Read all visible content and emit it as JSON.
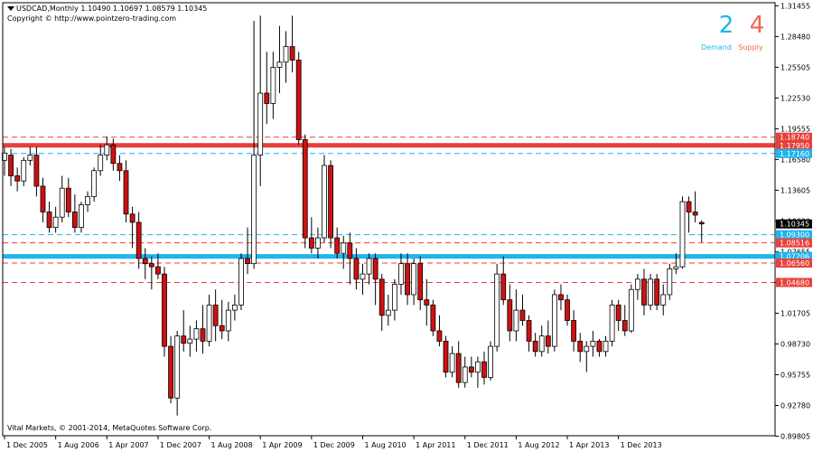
{
  "header": {
    "symbol_line": "USDCAD,Monthly  1.10490 1.10697 1.08579 1.10345",
    "copyright": "Copyright © http://www.pointzero-trading.com"
  },
  "footer": {
    "text": "Vital Markets, © 2001-2014, MetaQuotes Software Corp."
  },
  "counters": {
    "demand_value": "2",
    "demand_label": "Demand",
    "supply_value": "4",
    "supply_label": "Supply",
    "demand_color": "#1eb4f0",
    "supply_color": "#f0654f"
  },
  "colors": {
    "bull_body": "#ffffff",
    "bear_body": "#d01010",
    "candle_outline": "#000000",
    "supply_line": "#e8403a",
    "demand_line": "#1eb4f0",
    "current_price_bg": "#000000"
  },
  "chart_data": {
    "type": "candlestick",
    "title": "USDCAD,Monthly",
    "ylim": [
      0.8985,
      1.3175
    ],
    "y_ticks": [
      "1.31455",
      "1.28480",
      "1.25505",
      "1.22530",
      "1.19555",
      "1.16580",
      "1.13605",
      "1.10630",
      "1.07655",
      "1.04680",
      "1.01705",
      "0.98730",
      "0.95755",
      "0.92780",
      "0.89805"
    ],
    "x_ticks": [
      "1 Dec 2005",
      "1 Aug 2006",
      "1 Apr 2007",
      "1 Dec 2007",
      "1 Aug 2008",
      "1 Apr 2009",
      "1 Dec 2009",
      "1 Aug 2010",
      "1 Apr 2011",
      "1 Dec 2011",
      "1 Aug 2012",
      "1 Apr 2013",
      "1 Dec 2013"
    ],
    "current_price": "1.10345",
    "levels": [
      {
        "value": 1.1874,
        "label": "1.18740",
        "kind": "supply",
        "style": "dashed"
      },
      {
        "value": 1.1795,
        "label": "1.17950",
        "kind": "supply",
        "style": "solid-thick"
      },
      {
        "value": 1.1716,
        "label": "1.17160",
        "kind": "demand",
        "style": "dashed"
      },
      {
        "value": 1.093,
        "label": "1.09300",
        "kind": "demand",
        "style": "dashed"
      },
      {
        "value": 1.0851,
        "label": "1.08516",
        "kind": "supply",
        "style": "dashed"
      },
      {
        "value": 1.072,
        "label": "1.07206",
        "kind": "demand",
        "style": "solid-thick"
      },
      {
        "value": 1.0656,
        "label": "1.06560",
        "kind": "supply",
        "style": "dashed"
      },
      {
        "value": 1.0468,
        "label": "1.04680",
        "kind": "supply",
        "style": "dashed"
      }
    ],
    "candles": [
      {
        "o": 1.165,
        "h": 1.178,
        "l": 1.15,
        "c": 1.172
      },
      {
        "o": 1.17,
        "h": 1.176,
        "l": 1.14,
        "c": 1.15
      },
      {
        "o": 1.15,
        "h": 1.158,
        "l": 1.135,
        "c": 1.145
      },
      {
        "o": 1.145,
        "h": 1.168,
        "l": 1.14,
        "c": 1.165
      },
      {
        "o": 1.165,
        "h": 1.178,
        "l": 1.16,
        "c": 1.17
      },
      {
        "o": 1.17,
        "h": 1.178,
        "l": 1.13,
        "c": 1.14
      },
      {
        "o": 1.14,
        "h": 1.148,
        "l": 1.105,
        "c": 1.115
      },
      {
        "o": 1.115,
        "h": 1.125,
        "l": 1.095,
        "c": 1.1
      },
      {
        "o": 1.1,
        "h": 1.12,
        "l": 1.095,
        "c": 1.11
      },
      {
        "o": 1.11,
        "h": 1.15,
        "l": 1.105,
        "c": 1.138
      },
      {
        "o": 1.138,
        "h": 1.148,
        "l": 1.11,
        "c": 1.115
      },
      {
        "o": 1.115,
        "h": 1.132,
        "l": 1.095,
        "c": 1.1
      },
      {
        "o": 1.1,
        "h": 1.125,
        "l": 1.095,
        "c": 1.122
      },
      {
        "o": 1.122,
        "h": 1.135,
        "l": 1.115,
        "c": 1.13
      },
      {
        "o": 1.13,
        "h": 1.158,
        "l": 1.125,
        "c": 1.155
      },
      {
        "o": 1.155,
        "h": 1.18,
        "l": 1.15,
        "c": 1.17
      },
      {
        "o": 1.17,
        "h": 1.188,
        "l": 1.165,
        "c": 1.18
      },
      {
        "o": 1.18,
        "h": 1.186,
        "l": 1.155,
        "c": 1.162
      },
      {
        "o": 1.162,
        "h": 1.17,
        "l": 1.145,
        "c": 1.155
      },
      {
        "o": 1.155,
        "h": 1.165,
        "l": 1.105,
        "c": 1.113
      },
      {
        "o": 1.113,
        "h": 1.12,
        "l": 1.08,
        "c": 1.105
      },
      {
        "o": 1.105,
        "h": 1.115,
        "l": 1.06,
        "c": 1.07
      },
      {
        "o": 1.07,
        "h": 1.08,
        "l": 1.05,
        "c": 1.065
      },
      {
        "o": 1.065,
        "h": 1.072,
        "l": 1.04,
        "c": 1.062
      },
      {
        "o": 1.062,
        "h": 1.075,
        "l": 1.05,
        "c": 1.055
      },
      {
        "o": 1.055,
        "h": 1.062,
        "l": 0.975,
        "c": 0.985
      },
      {
        "o": 0.985,
        "h": 0.995,
        "l": 0.93,
        "c": 0.935
      },
      {
        "o": 0.935,
        "h": 1.0,
        "l": 0.918,
        "c": 0.995
      },
      {
        "o": 0.995,
        "h": 1.02,
        "l": 0.98,
        "c": 0.988
      },
      {
        "o": 0.988,
        "h": 1.005,
        "l": 0.975,
        "c": 0.992
      },
      {
        "o": 0.992,
        "h": 1.01,
        "l": 0.98,
        "c": 1.002
      },
      {
        "o": 1.002,
        "h": 1.025,
        "l": 0.978,
        "c": 0.99
      },
      {
        "o": 0.99,
        "h": 1.035,
        "l": 0.985,
        "c": 1.025
      },
      {
        "o": 1.025,
        "h": 1.04,
        "l": 0.99,
        "c": 1.005
      },
      {
        "o": 1.005,
        "h": 1.03,
        "l": 0.992,
        "c": 1.0
      },
      {
        "o": 1.0,
        "h": 1.028,
        "l": 0.99,
        "c": 1.02
      },
      {
        "o": 1.02,
        "h": 1.035,
        "l": 1.01,
        "c": 1.025
      },
      {
        "o": 1.025,
        "h": 1.075,
        "l": 1.02,
        "c": 1.07
      },
      {
        "o": 1.07,
        "h": 1.1,
        "l": 1.055,
        "c": 1.065
      },
      {
        "o": 1.065,
        "h": 1.3,
        "l": 1.06,
        "c": 1.17
      },
      {
        "o": 1.17,
        "h": 1.305,
        "l": 1.14,
        "c": 1.23
      },
      {
        "o": 1.23,
        "h": 1.27,
        "l": 1.2,
        "c": 1.22
      },
      {
        "o": 1.22,
        "h": 1.27,
        "l": 1.205,
        "c": 1.255
      },
      {
        "o": 1.255,
        "h": 1.295,
        "l": 1.23,
        "c": 1.26
      },
      {
        "o": 1.26,
        "h": 1.29,
        "l": 1.24,
        "c": 1.275
      },
      {
        "o": 1.275,
        "h": 1.305,
        "l": 1.25,
        "c": 1.262
      },
      {
        "o": 1.262,
        "h": 1.27,
        "l": 1.18,
        "c": 1.185
      },
      {
        "o": 1.185,
        "h": 1.19,
        "l": 1.08,
        "c": 1.09
      },
      {
        "o": 1.09,
        "h": 1.11,
        "l": 1.075,
        "c": 1.08
      },
      {
        "o": 1.08,
        "h": 1.1,
        "l": 1.07,
        "c": 1.09
      },
      {
        "o": 1.09,
        "h": 1.17,
        "l": 1.085,
        "c": 1.16
      },
      {
        "o": 1.16,
        "h": 1.165,
        "l": 1.08,
        "c": 1.09
      },
      {
        "o": 1.09,
        "h": 1.1,
        "l": 1.07,
        "c": 1.075
      },
      {
        "o": 1.075,
        "h": 1.092,
        "l": 1.06,
        "c": 1.085
      },
      {
        "o": 1.085,
        "h": 1.095,
        "l": 1.045,
        "c": 1.07
      },
      {
        "o": 1.07,
        "h": 1.08,
        "l": 1.04,
        "c": 1.05
      },
      {
        "o": 1.05,
        "h": 1.065,
        "l": 1.035,
        "c": 1.055
      },
      {
        "o": 1.055,
        "h": 1.075,
        "l": 1.045,
        "c": 1.07
      },
      {
        "o": 1.07,
        "h": 1.075,
        "l": 1.025,
        "c": 1.05
      },
      {
        "o": 1.05,
        "h": 1.055,
        "l": 1.0,
        "c": 1.015
      },
      {
        "o": 1.015,
        "h": 1.035,
        "l": 1.005,
        "c": 1.02
      },
      {
        "o": 1.02,
        "h": 1.05,
        "l": 1.01,
        "c": 1.045
      },
      {
        "o": 1.045,
        "h": 1.075,
        "l": 1.035,
        "c": 1.065
      },
      {
        "o": 1.065,
        "h": 1.075,
        "l": 1.025,
        "c": 1.035
      },
      {
        "o": 1.035,
        "h": 1.07,
        "l": 1.025,
        "c": 1.065
      },
      {
        "o": 1.065,
        "h": 1.072,
        "l": 1.02,
        "c": 1.03
      },
      {
        "o": 1.03,
        "h": 1.05,
        "l": 1.005,
        "c": 1.025
      },
      {
        "o": 1.025,
        "h": 1.03,
        "l": 0.995,
        "c": 1.0
      },
      {
        "o": 1.0,
        "h": 1.015,
        "l": 0.985,
        "c": 0.99
      },
      {
        "o": 0.99,
        "h": 0.995,
        "l": 0.955,
        "c": 0.96
      },
      {
        "o": 0.96,
        "h": 0.985,
        "l": 0.955,
        "c": 0.978
      },
      {
        "o": 0.978,
        "h": 0.99,
        "l": 0.945,
        "c": 0.95
      },
      {
        "o": 0.95,
        "h": 0.975,
        "l": 0.945,
        "c": 0.965
      },
      {
        "o": 0.965,
        "h": 0.975,
        "l": 0.955,
        "c": 0.96
      },
      {
        "o": 0.96,
        "h": 0.975,
        "l": 0.945,
        "c": 0.97
      },
      {
        "o": 0.97,
        "h": 0.98,
        "l": 0.948,
        "c": 0.955
      },
      {
        "o": 0.955,
        "h": 0.99,
        "l": 0.952,
        "c": 0.985
      },
      {
        "o": 0.985,
        "h": 1.065,
        "l": 0.98,
        "c": 1.055
      },
      {
        "o": 1.055,
        "h": 1.072,
        "l": 1.025,
        "c": 1.03
      },
      {
        "o": 1.03,
        "h": 1.045,
        "l": 0.99,
        "c": 1.0
      },
      {
        "o": 1.0,
        "h": 1.04,
        "l": 0.99,
        "c": 1.02
      },
      {
        "o": 1.02,
        "h": 1.035,
        "l": 1.005,
        "c": 1.01
      },
      {
        "o": 1.01,
        "h": 1.015,
        "l": 0.98,
        "c": 0.99
      },
      {
        "o": 0.99,
        "h": 0.998,
        "l": 0.975,
        "c": 0.98
      },
      {
        "o": 0.98,
        "h": 1.005,
        "l": 0.975,
        "c": 0.995
      },
      {
        "o": 0.995,
        "h": 1.01,
        "l": 0.978,
        "c": 0.985
      },
      {
        "o": 0.985,
        "h": 1.04,
        "l": 0.98,
        "c": 1.035
      },
      {
        "o": 1.035,
        "h": 1.045,
        "l": 1.02,
        "c": 1.03
      },
      {
        "o": 1.03,
        "h": 1.035,
        "l": 1.005,
        "c": 1.01
      },
      {
        "o": 1.01,
        "h": 1.02,
        "l": 0.98,
        "c": 0.99
      },
      {
        "o": 0.99,
        "h": 0.998,
        "l": 0.97,
        "c": 0.98
      },
      {
        "o": 0.98,
        "h": 0.99,
        "l": 0.96,
        "c": 0.985
      },
      {
        "o": 0.985,
        "h": 1.0,
        "l": 0.975,
        "c": 0.99
      },
      {
        "o": 0.99,
        "h": 0.992,
        "l": 0.975,
        "c": 0.98
      },
      {
        "o": 0.98,
        "h": 0.995,
        "l": 0.975,
        "c": 0.99
      },
      {
        "o": 0.99,
        "h": 1.03,
        "l": 0.985,
        "c": 1.025
      },
      {
        "o": 1.025,
        "h": 1.03,
        "l": 1.0,
        "c": 1.01
      },
      {
        "o": 1.01,
        "h": 1.025,
        "l": 0.995,
        "c": 1.0
      },
      {
        "o": 1.0,
        "h": 1.045,
        "l": 0.998,
        "c": 1.04
      },
      {
        "o": 1.04,
        "h": 1.055,
        "l": 1.03,
        "c": 1.05
      },
      {
        "o": 1.05,
        "h": 1.06,
        "l": 1.015,
        "c": 1.025
      },
      {
        "o": 1.025,
        "h": 1.055,
        "l": 1.02,
        "c": 1.05
      },
      {
        "o": 1.05,
        "h": 1.055,
        "l": 1.02,
        "c": 1.025
      },
      {
        "o": 1.025,
        "h": 1.045,
        "l": 1.015,
        "c": 1.035
      },
      {
        "o": 1.035,
        "h": 1.065,
        "l": 1.03,
        "c": 1.06
      },
      {
        "o": 1.06,
        "h": 1.075,
        "l": 1.055,
        "c": 1.062
      },
      {
        "o": 1.062,
        "h": 1.13,
        "l": 1.06,
        "c": 1.125
      },
      {
        "o": 1.125,
        "h": 1.13,
        "l": 1.095,
        "c": 1.115
      },
      {
        "o": 1.115,
        "h": 1.135,
        "l": 1.105,
        "c": 1.112
      },
      {
        "o": 1.1049,
        "h": 1.10697,
        "l": 1.08579,
        "c": 1.10345
      }
    ]
  }
}
